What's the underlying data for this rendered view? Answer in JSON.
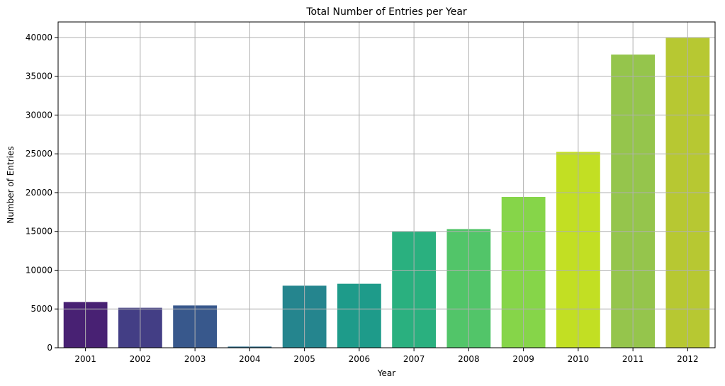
{
  "chart_data": {
    "type": "bar",
    "title": "Total Number of Entries per Year",
    "xlabel": "Year",
    "ylabel": "Number of Entries",
    "categories": [
      "2001",
      "2002",
      "2003",
      "2004",
      "2005",
      "2006",
      "2007",
      "2008",
      "2009",
      "2010",
      "2011",
      "2012"
    ],
    "values": [
      5900,
      5150,
      5450,
      150,
      8000,
      8250,
      15000,
      15300,
      19450,
      25250,
      37800,
      39950
    ],
    "ylim": [
      0,
      42000
    ],
    "yticks": [
      0,
      5000,
      10000,
      15000,
      20000,
      25000,
      30000,
      35000,
      40000
    ],
    "ytick_labels": [
      "0",
      "5000",
      "10000",
      "15000",
      "20000",
      "25000",
      "30000",
      "35000",
      "40000"
    ],
    "grid": true,
    "colors": [
      "#482173",
      "#433e85",
      "#38588c",
      "#2d708e",
      "#25858e",
      "#1e9b8a",
      "#2ab07f",
      "#52c569",
      "#86d549",
      "#c2df23",
      "#95c54c",
      "#b7c832"
    ]
  }
}
